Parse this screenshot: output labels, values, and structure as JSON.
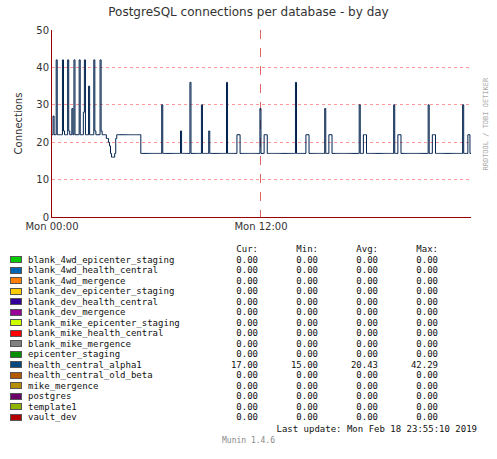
{
  "chart_data": {
    "type": "line",
    "title": "PostgreSQL connections per database - by day",
    "y_label": "Connections",
    "color": "#00224d",
    "ylim": [
      0,
      50
    ],
    "yticks": [
      0,
      10,
      20,
      30,
      40,
      50
    ],
    "grid": true,
    "categories": [
      "Mon 00:00",
      null,
      null,
      null,
      null,
      null,
      null,
      null,
      null,
      null,
      null,
      null,
      null,
      null,
      null,
      null,
      null,
      null,
      null,
      null,
      null,
      null,
      null,
      null,
      null,
      null,
      null,
      null,
      null,
      null,
      null,
      null,
      null,
      null,
      null,
      null,
      null,
      null,
      null,
      null,
      null,
      null,
      null,
      null,
      null,
      null,
      null,
      null,
      null,
      null,
      null,
      null,
      null,
      null,
      null,
      null,
      null,
      null,
      null,
      null,
      null,
      null,
      null,
      null,
      null,
      null,
      null,
      null,
      null,
      null,
      null,
      null,
      null,
      null,
      null,
      null,
      null,
      null,
      null,
      null,
      null,
      null,
      null,
      null,
      null,
      null,
      null,
      null,
      null,
      null,
      null,
      null,
      null,
      null,
      null,
      null,
      null,
      null,
      null,
      null,
      null,
      null,
      null,
      null,
      null,
      null,
      null,
      null,
      null,
      null,
      null,
      null,
      null,
      null,
      null,
      null,
      null,
      null,
      null,
      null,
      null,
      null,
      null,
      null,
      null,
      null,
      null,
      null,
      null,
      null,
      null,
      null,
      null,
      null,
      null,
      null,
      null,
      null,
      null,
      null,
      null,
      null,
      null,
      null,
      null,
      null,
      null,
      null,
      null,
      null,
      null,
      null,
      null,
      null,
      null,
      null,
      null,
      null,
      null,
      null,
      null,
      null,
      null,
      null,
      null,
      null,
      null,
      null,
      null,
      null,
      null,
      null,
      null,
      null,
      null,
      null,
      null,
      null,
      null,
      null,
      null,
      null,
      null,
      null,
      null,
      null,
      null,
      null,
      null,
      null,
      null,
      null,
      null,
      null,
      null,
      null,
      null,
      null,
      null,
      null,
      "Mon 12:00",
      null,
      null,
      null,
      null,
      null,
      null,
      null,
      null,
      null,
      null,
      null,
      null,
      null,
      null,
      null,
      null,
      null,
      null,
      null,
      null,
      null,
      null,
      null,
      null,
      null,
      null,
      null,
      null,
      null,
      null,
      null,
      null,
      null,
      null,
      null,
      null,
      null,
      null,
      null,
      null,
      null,
      null,
      null,
      null,
      null,
      null,
      null,
      null,
      null,
      null,
      null,
      null,
      null,
      null,
      null,
      null,
      null,
      null,
      null,
      null,
      null,
      null,
      null,
      null,
      null,
      null,
      null,
      null,
      null,
      null,
      null,
      null,
      null,
      null,
      null,
      null,
      null,
      null,
      null,
      null,
      null,
      null,
      null,
      null,
      null,
      null,
      null,
      null,
      null,
      null,
      null,
      null,
      null,
      null,
      null,
      null,
      null,
      null,
      null,
      null,
      null,
      null,
      null,
      null,
      null,
      null,
      null,
      null,
      null,
      null,
      null,
      null,
      null,
      null,
      null,
      null,
      null,
      null,
      null,
      null,
      null,
      null,
      null,
      null,
      null,
      null,
      null,
      null,
      null,
      null,
      null,
      null,
      null,
      null,
      null,
      null,
      null,
      null,
      null,
      null,
      null,
      null,
      null,
      null,
      null,
      null,
      null,
      null,
      null,
      null,
      null,
      null,
      null,
      null,
      null,
      null,
      null,
      null,
      null,
      null,
      null,
      null,
      null,
      null,
      null,
      null,
      null,
      null,
      null,
      null,
      null,
      null,
      null,
      null,
      null,
      null,
      null,
      null,
      null,
      null,
      null,
      null,
      null,
      null,
      null,
      null,
      null,
      null,
      null,
      null,
      null,
      null,
      null,
      null,
      null,
      null,
      null,
      null,
      null,
      null,
      null
    ],
    "values": [
      22,
      27,
      22,
      22,
      42,
      22,
      22,
      22,
      22,
      22,
      42,
      23,
      22,
      22,
      22,
      42,
      23,
      22,
      22,
      29,
      22,
      42,
      22,
      22,
      22,
      22,
      42,
      22,
      22,
      22,
      28,
      42,
      22,
      22,
      22,
      35,
      22,
      22,
      22,
      22,
      42,
      23,
      22,
      22,
      22,
      22,
      42,
      23,
      22,
      22,
      22,
      22,
      21,
      21,
      20,
      19,
      17,
      16,
      16,
      16,
      17,
      21,
      22,
      22,
      22,
      22,
      22,
      22,
      22,
      22,
      22,
      22,
      22,
      22,
      22,
      22,
      22,
      22,
      22,
      22,
      22,
      22,
      22,
      22,
      22,
      17,
      17,
      17,
      17,
      17,
      17,
      17,
      17,
      17,
      17,
      17,
      17,
      17,
      17,
      17,
      17,
      17,
      17,
      17,
      17,
      30,
      17,
      17,
      17,
      17,
      17,
      17,
      17,
      17,
      17,
      17,
      17,
      17,
      17,
      17,
      17,
      17,
      17,
      23,
      17,
      17,
      17,
      17,
      17,
      17,
      17,
      17,
      36,
      17,
      17,
      17,
      17,
      17,
      17,
      17,
      17,
      17,
      17,
      30,
      17,
      17,
      17,
      17,
      17,
      17,
      23,
      17,
      17,
      17,
      17,
      17,
      17,
      17,
      17,
      17,
      17,
      17,
      17,
      17,
      17,
      17,
      17,
      36,
      17,
      17,
      17,
      17,
      17,
      17,
      17,
      17,
      17,
      22,
      22,
      22,
      17,
      17,
      17,
      17,
      17,
      17,
      17,
      17,
      17,
      17,
      17,
      17,
      17,
      17,
      17,
      17,
      17,
      17,
      17,
      29,
      17,
      17,
      17,
      22,
      22,
      22,
      17,
      17,
      17,
      17,
      17,
      17,
      17,
      17,
      17,
      17,
      17,
      17,
      17,
      17,
      17,
      17,
      17,
      17,
      17,
      17,
      17,
      17,
      17,
      17,
      17,
      17,
      17,
      36,
      17,
      17,
      17,
      17,
      17,
      17,
      17,
      17,
      17,
      22,
      22,
      22,
      17,
      17,
      17,
      17,
      17,
      17,
      17,
      17,
      17,
      17,
      17,
      17,
      17,
      17,
      17,
      29,
      17,
      17,
      17,
      22,
      22,
      22,
      17,
      17,
      17,
      17,
      17,
      17,
      17,
      17,
      17,
      17,
      17,
      17,
      17,
      17,
      17,
      17,
      17,
      17,
      17,
      17,
      17,
      17,
      17,
      17,
      17,
      17,
      30,
      17,
      17,
      17,
      22,
      22,
      22,
      17,
      17,
      17,
      17,
      17,
      17,
      17,
      17,
      17,
      17,
      17,
      17,
      17,
      17,
      17,
      17,
      17,
      17,
      17,
      17,
      17,
      17,
      17,
      17,
      17,
      17,
      30,
      17,
      17,
      17,
      22,
      22,
      22,
      17,
      17,
      17,
      17,
      17,
      17,
      17,
      17,
      17,
      17,
      17,
      17,
      17,
      17,
      17,
      17,
      17,
      17,
      17,
      17,
      17,
      17,
      17,
      17,
      17,
      17,
      30,
      17,
      17,
      17,
      22,
      22,
      22,
      17,
      17,
      17,
      17,
      17,
      17,
      17,
      17,
      17,
      17,
      17,
      17,
      17,
      17,
      17,
      17,
      17,
      17,
      17,
      17,
      17,
      17,
      17,
      17,
      17,
      17,
      30,
      17,
      17,
      17,
      17,
      22,
      22,
      17,
      17
    ],
    "watermark": "RRDTOOL / TOBI OETIKER",
    "last_update": "Last update: Mon Feb 18 23:55:10 2019",
    "footer": "Munin 1.4.6",
    "table": {
      "columns": [
        "Cur:",
        "Min:",
        "Avg:",
        "Max:"
      ],
      "rows": [
        {
          "name": "blank_4wd_epicenter_staging",
          "color": "#00cc00",
          "values": [
            0,
            0,
            0,
            0
          ],
          "value_labels": [
            "0.00",
            "0.00",
            "0.00",
            "0.00"
          ]
        },
        {
          "name": "blank_4wd_health_central",
          "color": "#0066b3",
          "values": [
            0,
            0,
            0,
            0
          ],
          "value_labels": [
            "0.00",
            "0.00",
            "0.00",
            "0.00"
          ]
        },
        {
          "name": "blank_4wd_mergence",
          "color": "#ff8000",
          "values": [
            0,
            0,
            0,
            0
          ],
          "value_labels": [
            "0.00",
            "0.00",
            "0.00",
            "0.00"
          ]
        },
        {
          "name": "blank_dev_epicenter_staging",
          "color": "#ffcc00",
          "values": [
            0,
            0,
            0,
            0
          ],
          "value_labels": [
            "0.00",
            "0.00",
            "0.00",
            "0.00"
          ]
        },
        {
          "name": "blank_dev_health_central",
          "color": "#330099",
          "values": [
            0,
            0,
            0,
            0
          ],
          "value_labels": [
            "0.00",
            "0.00",
            "0.00",
            "0.00"
          ]
        },
        {
          "name": "blank_dev_mergence",
          "color": "#990099",
          "values": [
            0,
            0,
            0,
            0
          ],
          "value_labels": [
            "0.00",
            "0.00",
            "0.00",
            "0.00"
          ]
        },
        {
          "name": "blank_mike_epicenter_staging",
          "color": "#ccff00",
          "values": [
            0,
            0,
            0,
            0
          ],
          "value_labels": [
            "0.00",
            "0.00",
            "0.00",
            "0.00"
          ]
        },
        {
          "name": "blank_mike_health_central",
          "color": "#ff0000",
          "values": [
            0,
            0,
            0,
            0
          ],
          "value_labels": [
            "0.00",
            "0.00",
            "0.00",
            "0.00"
          ]
        },
        {
          "name": "blank_mike_mergence",
          "color": "#808080",
          "values": [
            0,
            0,
            0,
            0
          ],
          "value_labels": [
            "0.00",
            "0.00",
            "0.00",
            "0.00"
          ]
        },
        {
          "name": "epicenter_staging",
          "color": "#008f00",
          "values": [
            0,
            0,
            0,
            0
          ],
          "value_labels": [
            "0.00",
            "0.00",
            "0.00",
            "0.00"
          ]
        },
        {
          "name": "health_central_alpha1",
          "color": "#00487d",
          "values": [
            17,
            15,
            20.43,
            42.29
          ],
          "value_labels": [
            "17.00",
            "15.00",
            "20.43",
            "42.29"
          ]
        },
        {
          "name": "health_central_old_beta",
          "color": "#b35a00",
          "values": [
            0,
            0,
            0,
            0
          ],
          "value_labels": [
            "0.00",
            "0.00",
            "0.00",
            "0.00"
          ]
        },
        {
          "name": "mike_mergence",
          "color": "#b38f00",
          "values": [
            0,
            0,
            0,
            0
          ],
          "value_labels": [
            "0.00",
            "0.00",
            "0.00",
            "0.00"
          ]
        },
        {
          "name": "postgres",
          "color": "#6b006b",
          "values": [
            0,
            0,
            0,
            0
          ],
          "value_labels": [
            "0.00",
            "0.00",
            "0.00",
            "0.00"
          ]
        },
        {
          "name": "template1",
          "color": "#8fb300",
          "values": [
            0,
            0,
            0,
            0
          ],
          "value_labels": [
            "0.00",
            "0.00",
            "0.00",
            "0.00"
          ]
        },
        {
          "name": "vault_dev",
          "color": "#b30000",
          "values": [
            0,
            0,
            0,
            0
          ],
          "value_labels": [
            "0.00",
            "0.00",
            "0.00",
            "0.00"
          ]
        }
      ]
    }
  }
}
